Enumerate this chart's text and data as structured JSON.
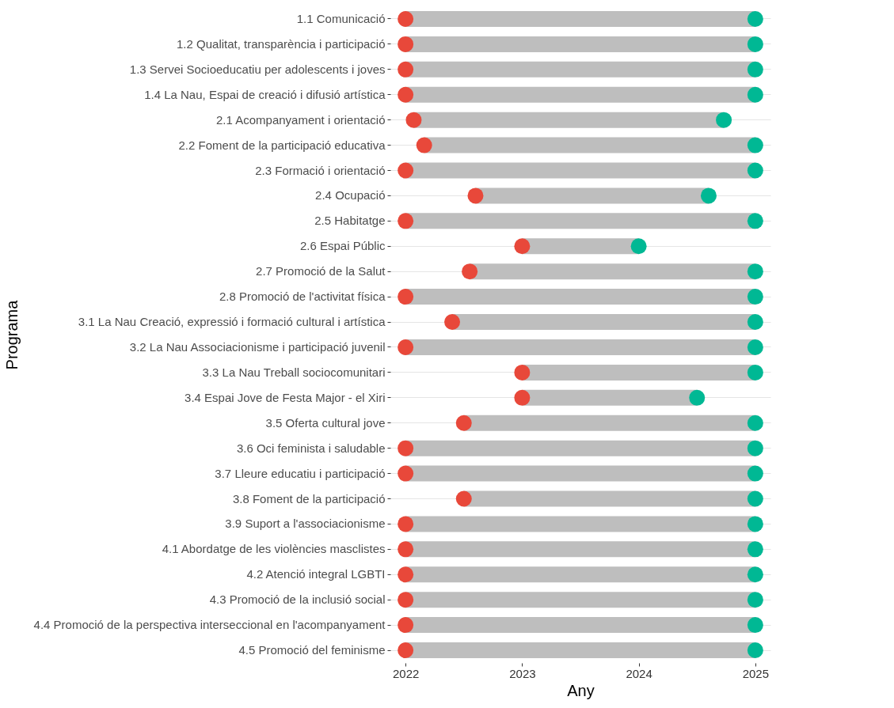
{
  "chart_data": {
    "type": "bar",
    "orientation": "horizontal",
    "xlabel": "Any",
    "ylabel": "Programa",
    "categories": [
      "1.1 Comunicació",
      "1.2 Qualitat, transparència i participació",
      "1.3 Servei Socioeducatiu per adolescents i joves",
      "1.4 La Nau, Espai de creació i difusió artística",
      "2.1 Acompanyament i orientació",
      "2.2 Foment de la participació educativa",
      "2.3 Formació i orientació",
      "2.4 Ocupació",
      "2.5 Habitatge",
      "2.6 Espai Públic",
      "2.7 Promoció de la Salut",
      "2.8 Promoció de l'activitat física",
      "3.1 La Nau Creació, expressió i formació cultural i artística",
      "3.2 La Nau Associacionisme i participació juvenil",
      "3.3 La Nau Treball sociocomunitari",
      "3.4 Espai Jove de Festa Major - el Xiri",
      "3.5 Oferta cultural jove",
      "3.6 Oci feminista i saludable",
      "3.7 Lleure educatiu i participació",
      "3.8 Foment de la participació",
      "3.9 Suport a l'associacionisme",
      "4.1 Abordatge de les violències masclistes",
      "4.2 Atenció integral LGBTI",
      "4.3 Promoció de la inclusió social",
      "4.4 Promoció de la perspectiva interseccional en l'acompanyament",
      "4.5 Promoció del feminisme"
    ],
    "series": [
      {
        "color": "#bebebe",
        "base": [
          2022,
          2022,
          2022,
          2022,
          2022.07,
          2022.16,
          2022,
          2022.6,
          2022,
          2023,
          2022.55,
          2022,
          2022.4,
          2022,
          2023,
          2023,
          2022.5,
          2022,
          2022,
          2022.5,
          2022,
          2022,
          2022,
          2022,
          2022,
          2022
        ],
        "values": [
          3,
          3,
          3,
          3,
          2.66,
          2.84,
          3,
          2,
          3,
          1,
          2.45,
          3,
          2.6,
          3,
          2,
          1.5,
          2.5,
          3,
          3,
          2.5,
          3,
          3,
          3,
          3,
          3,
          3
        ]
      },
      {
        "type": "scatter",
        "color": "#e8483a",
        "values": [
          2022,
          2022,
          2022,
          2022,
          2022.07,
          2022.16,
          2022,
          2022.6,
          2022,
          2023,
          2022.55,
          2022,
          2022.4,
          2022,
          2023,
          2023,
          2022.5,
          2022,
          2022,
          2022.5,
          2022,
          2022,
          2022,
          2022,
          2022,
          2022
        ]
      },
      {
        "type": "scatter",
        "color": "#00b894",
        "values": [
          2025,
          2025,
          2025,
          2025,
          2024.73,
          2025,
          2025,
          2024.6,
          2025,
          2024,
          2025,
          2025,
          2025,
          2025,
          2025,
          2024.5,
          2025,
          2025,
          2025,
          2025,
          2025,
          2025,
          2025,
          2025,
          2025,
          2025
        ]
      }
    ],
    "xlim": [
      2021.87,
      2025.13
    ],
    "xticks": [
      2022,
      2023,
      2024,
      2025
    ],
    "grid": "y",
    "marker": "circle"
  }
}
